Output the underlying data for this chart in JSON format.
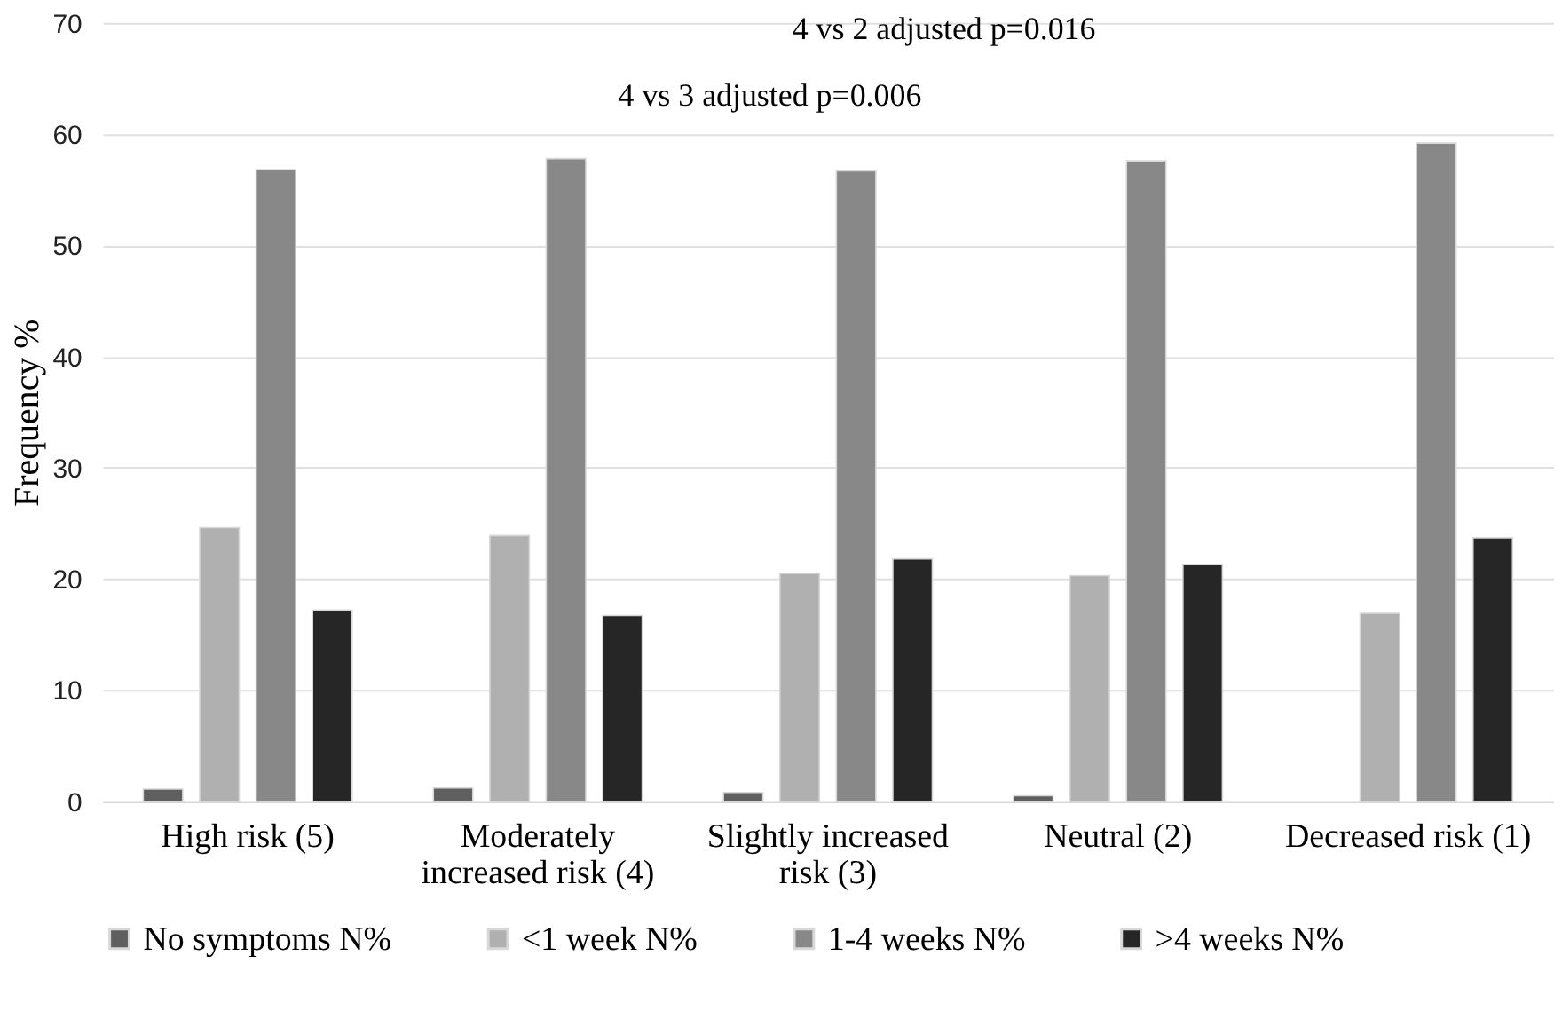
{
  "chart_data": {
    "type": "bar",
    "ylabel": "Frequency %",
    "categories": [
      "High risk (5)",
      "Moderately increased risk (4)",
      "Slightly increased risk (3)",
      "Neutral (2)",
      "Decreased risk (1)"
    ],
    "series": [
      {
        "name": "No symptoms N%",
        "color": "#5f5f5f",
        "values": [
          1.1,
          1.2,
          0.8,
          0.5,
          null
        ]
      },
      {
        "name": "<1 week N%",
        "color": "#b0b0b0",
        "values": [
          24.6,
          23.9,
          20.5,
          20.3,
          16.9
        ]
      },
      {
        "name": "1-4 weeks N%",
        "color": "#888888",
        "values": [
          56.8,
          57.8,
          56.7,
          57.6,
          59.2
        ]
      },
      {
        "name": ">4 weeks N%",
        "color": "#262626",
        "values": [
          17.2,
          16.7,
          21.8,
          21.3,
          23.7
        ]
      }
    ],
    "ylim": [
      0,
      70
    ],
    "yticks": [
      0,
      10,
      20,
      30,
      40,
      50,
      60,
      70
    ],
    "grid": "y",
    "legend": "bottom",
    "annotations": [
      "4 vs 2 adjusted p=0.016",
      "4 vs 3 adjusted p=0.006"
    ]
  }
}
